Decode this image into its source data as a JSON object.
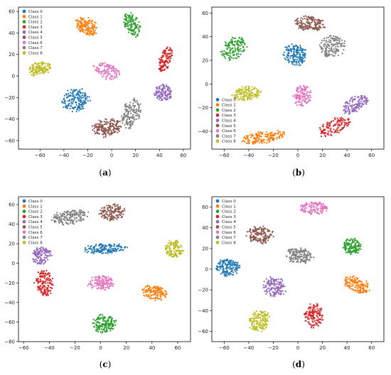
{
  "palette": [
    "#1f77b4",
    "#ff7f0e",
    "#2ca02c",
    "#d62728",
    "#9467bd",
    "#8c564b",
    "#e377c2",
    "#7f7f7f",
    "#bcbd22"
  ],
  "legend_labels": [
    "Class 0",
    "Class 1",
    "Class 2",
    "Class 3",
    "Class 4",
    "Class 5",
    "Class 6",
    "Class 7",
    "Class 8"
  ],
  "chart_data": [
    {
      "type": "scatter",
      "caption": "(a)",
      "xlim": [
        -78,
        66
      ],
      "ylim": [
        -68,
        64
      ],
      "xticks": [
        -60,
        -40,
        -20,
        0,
        20,
        40,
        60
      ],
      "yticks": [
        -60,
        -40,
        -20,
        0,
        20,
        40,
        60
      ],
      "legend": "top-left",
      "clusters": [
        {
          "class": 0,
          "cx": -30,
          "cy": -22,
          "rx": 11,
          "ry": 10,
          "rot": 30,
          "n": 170
        },
        {
          "class": 1,
          "cx": -21,
          "cy": 46,
          "rx": 10,
          "ry": 7,
          "rot": -35,
          "n": 150
        },
        {
          "class": 2,
          "cx": 17,
          "cy": 48,
          "rx": 6,
          "ry": 11,
          "rot": 20,
          "n": 130
        },
        {
          "class": 3,
          "cx": 45,
          "cy": 15,
          "rx": 5,
          "ry": 12,
          "rot": -15,
          "n": 120
        },
        {
          "class": 4,
          "cx": 43,
          "cy": -15,
          "rx": 7,
          "ry": 8,
          "rot": 20,
          "n": 120
        },
        {
          "class": 5,
          "cx": -4,
          "cy": -48,
          "rx": 12,
          "ry": 8,
          "rot": 10,
          "n": 180
        },
        {
          "class": 6,
          "cx": -4,
          "cy": 5,
          "rx": 11,
          "ry": 7,
          "rot": -25,
          "n": 120
        },
        {
          "class": 7,
          "cx": 16,
          "cy": -35,
          "rx": 8,
          "ry": 14,
          "rot": -20,
          "n": 140
        },
        {
          "class": 8,
          "cx": -60,
          "cy": 7,
          "rx": 10,
          "ry": 6,
          "rot": 20,
          "n": 130
        }
      ]
    },
    {
      "type": "scatter",
      "caption": "(b)",
      "xlim": [
        -70,
        70
      ],
      "ylim": [
        -55,
        65
      ],
      "xticks": [
        -60,
        -40,
        -20,
        0,
        20,
        40,
        60
      ],
      "yticks": [
        -40,
        -20,
        0,
        20,
        40,
        60
      ],
      "legend": "bottom-left",
      "clusters": [
        {
          "class": 0,
          "cx": -2,
          "cy": 25,
          "rx": 10,
          "ry": 8,
          "rot": -30,
          "n": 160
        },
        {
          "class": 1,
          "cx": -28,
          "cy": -45,
          "rx": 17,
          "ry": 5,
          "rot": 8,
          "n": 170
        },
        {
          "class": 2,
          "cx": -52,
          "cy": 30,
          "rx": 11,
          "ry": 8,
          "rot": 35,
          "n": 140
        },
        {
          "class": 3,
          "cx": 30,
          "cy": -36,
          "rx": 14,
          "ry": 6,
          "rot": 25,
          "n": 130
        },
        {
          "class": 4,
          "cx": 47,
          "cy": -17,
          "rx": 11,
          "ry": 6,
          "rot": 30,
          "n": 130
        },
        {
          "class": 5,
          "cx": 10,
          "cy": 51,
          "rx": 12,
          "ry": 6,
          "rot": -5,
          "n": 150
        },
        {
          "class": 6,
          "cx": 4,
          "cy": -10,
          "rx": 7,
          "ry": 9,
          "rot": 0,
          "n": 130
        },
        {
          "class": 7,
          "cx": 28,
          "cy": 32,
          "rx": 10,
          "ry": 9,
          "rot": 15,
          "n": 140
        },
        {
          "class": 8,
          "cx": -42,
          "cy": -8,
          "rx": 11,
          "ry": 6,
          "rot": 10,
          "n": 140
        }
      ]
    },
    {
      "type": "scatter",
      "caption": "(c)",
      "xlim": [
        -64,
        70
      ],
      "ylim": [
        -80,
        68
      ],
      "xticks": [
        -60,
        -40,
        -20,
        0,
        20,
        40,
        60
      ],
      "yticks": [
        -80,
        -60,
        -40,
        -20,
        0,
        20,
        40,
        60
      ],
      "legend": "top-left",
      "clusters": [
        {
          "class": 0,
          "cx": 3,
          "cy": 15,
          "rx": 16,
          "ry": 5,
          "rot": 5,
          "n": 160
        },
        {
          "class": 1,
          "cx": 42,
          "cy": -30,
          "rx": 10,
          "ry": 7,
          "rot": -25,
          "n": 140
        },
        {
          "class": 2,
          "cx": 3,
          "cy": -62,
          "rx": 9,
          "ry": 9,
          "rot": 0,
          "n": 150
        },
        {
          "class": 3,
          "cx": -44,
          "cy": -20,
          "rx": 7,
          "ry": 13,
          "rot": 0,
          "n": 160
        },
        {
          "class": 4,
          "cx": -46,
          "cy": 8,
          "rx": 7,
          "ry": 9,
          "rot": -20,
          "n": 120
        },
        {
          "class": 5,
          "cx": 9,
          "cy": 52,
          "rx": 10,
          "ry": 8,
          "rot": 15,
          "n": 140
        },
        {
          "class": 6,
          "cx": 0,
          "cy": -20,
          "rx": 10,
          "ry": 7,
          "rot": 0,
          "n": 140
        },
        {
          "class": 7,
          "cx": -24,
          "cy": 47,
          "rx": 14,
          "ry": 7,
          "rot": 10,
          "n": 160
        },
        {
          "class": 8,
          "cx": 57,
          "cy": 15,
          "rx": 7,
          "ry": 8,
          "rot": 10,
          "n": 120
        }
      ]
    },
    {
      "type": "scatter",
      "caption": "(d)",
      "xlim": [
        -70,
        70
      ],
      "ylim": [
        -70,
        70
      ],
      "xticks": [
        -60,
        -40,
        -20,
        0,
        20,
        40,
        60
      ],
      "yticks": [
        -60,
        -40,
        -20,
        0,
        20,
        40,
        60
      ],
      "legend": "top-left",
      "clusters": [
        {
          "class": 0,
          "cx": -57,
          "cy": 2,
          "rx": 9,
          "ry": 8,
          "rot": 0,
          "n": 150
        },
        {
          "class": 1,
          "cx": 48,
          "cy": -15,
          "rx": 11,
          "ry": 7,
          "rot": -30,
          "n": 150
        },
        {
          "class": 2,
          "cx": 44,
          "cy": 22,
          "rx": 7,
          "ry": 8,
          "rot": 0,
          "n": 130
        },
        {
          "class": 3,
          "cx": 13,
          "cy": -45,
          "rx": 7,
          "ry": 11,
          "rot": 0,
          "n": 140
        },
        {
          "class": 4,
          "cx": -19,
          "cy": -17,
          "rx": 9,
          "ry": 9,
          "rot": 0,
          "n": 140
        },
        {
          "class": 5,
          "cx": -31,
          "cy": 33,
          "rx": 10,
          "ry": 8,
          "rot": 0,
          "n": 150
        },
        {
          "class": 6,
          "cx": 13,
          "cy": 59,
          "rx": 11,
          "ry": 6,
          "rot": 0,
          "n": 140
        },
        {
          "class": 7,
          "cx": 1,
          "cy": 13,
          "rx": 11,
          "ry": 7,
          "rot": -10,
          "n": 150
        },
        {
          "class": 8,
          "cx": -31,
          "cy": -50,
          "rx": 8,
          "ry": 10,
          "rot": -15,
          "n": 150
        }
      ]
    }
  ]
}
